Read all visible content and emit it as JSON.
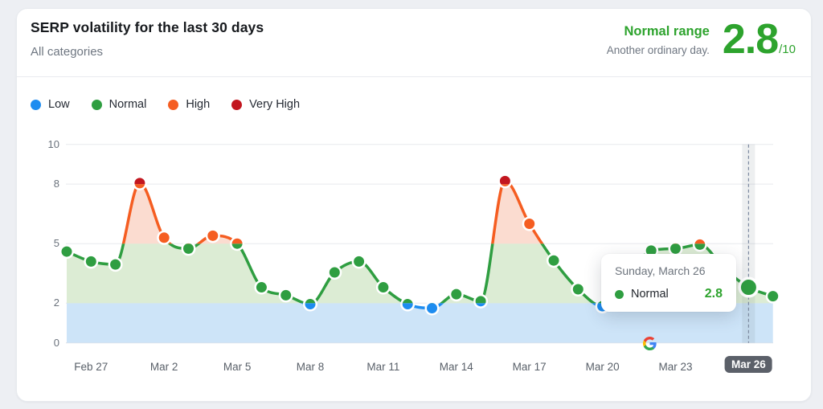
{
  "header": {
    "title": "SERP volatility for the last 30 days",
    "subtitle": "All categories",
    "status_label": "Normal range",
    "status_caption": "Another ordinary day.",
    "score": "2.8",
    "score_suffix": "/10"
  },
  "legend": {
    "items": [
      {
        "label": "Low",
        "color": "#1d8cf0"
      },
      {
        "label": "Normal",
        "color": "#2f9e41"
      },
      {
        "label": "High",
        "color": "#f55d21"
      },
      {
        "label": "Very High",
        "color": "#c2161f"
      }
    ]
  },
  "tooltip": {
    "date": "Sunday, March 26",
    "level": "Normal",
    "value": "2.8",
    "dot_color": "#2f9e41"
  },
  "chart_data": {
    "type": "line",
    "title": "SERP volatility for the last 30 days",
    "x": [
      "Feb 26",
      "Feb 27",
      "Feb 28",
      "Mar 1",
      "Mar 2",
      "Mar 3",
      "Mar 4",
      "Mar 5",
      "Mar 6",
      "Mar 7",
      "Mar 8",
      "Mar 9",
      "Mar 10",
      "Mar 11",
      "Mar 12",
      "Mar 13",
      "Mar 14",
      "Mar 15",
      "Mar 16",
      "Mar 17",
      "Mar 18",
      "Mar 19",
      "Mar 20",
      "Mar 21",
      "Mar 22",
      "Mar 23",
      "Mar 24",
      "Mar 25",
      "Mar 26",
      "Mar 27"
    ],
    "values": [
      4.6,
      4.1,
      3.95,
      8.05,
      5.3,
      4.75,
      5.4,
      5.0,
      2.8,
      2.4,
      1.95,
      3.55,
      4.1,
      2.8,
      1.95,
      1.75,
      2.45,
      2.1,
      8.15,
      6.0,
      4.15,
      2.7,
      1.85,
      3.2,
      4.65,
      4.75,
      4.95,
      3.75,
      2.8,
      2.35
    ],
    "levels": [
      "normal",
      "normal",
      "normal",
      "very_high",
      "high",
      "normal",
      "high",
      "high",
      "normal",
      "normal",
      "low",
      "normal",
      "normal",
      "normal",
      "low",
      "low",
      "normal",
      "normal",
      "very_high",
      "high",
      "normal",
      "normal",
      "low",
      "normal",
      "normal",
      "normal",
      "normal",
      "normal",
      "normal",
      "normal"
    ],
    "ylim": [
      0,
      10
    ],
    "yticks": [
      10,
      8,
      5,
      2,
      0
    ],
    "xtick_labels": [
      "Feb 27",
      "Mar 2",
      "Mar 5",
      "Mar 8",
      "Mar 11",
      "Mar 14",
      "Mar 17",
      "Mar 20",
      "Mar 23",
      "Mar 26"
    ],
    "xtick_indices": [
      1,
      4,
      7,
      10,
      13,
      16,
      19,
      22,
      25,
      28
    ],
    "highlight_index": 28,
    "band_thresholds": {
      "low": [
        0,
        2
      ],
      "normal": [
        2,
        5
      ],
      "high": [
        5,
        8
      ],
      "very_high": [
        8,
        10
      ]
    },
    "band_colors": {
      "low": "#1d8cf0",
      "normal": "#2f9e41",
      "high": "#f55d21",
      "very_high": "#c2161f"
    },
    "band_fills": {
      "low": "#cde4f8",
      "normal": "#dcecd4",
      "high": "#fbdcd0"
    },
    "grid_color": "#e7e9ed",
    "axis_color": "#dfe2e7",
    "highlight_band_color": "rgba(110,120,135,0.12)",
    "highlight_line_color": "#7d8aa0",
    "legend_position": "top-left",
    "grid": true
  }
}
